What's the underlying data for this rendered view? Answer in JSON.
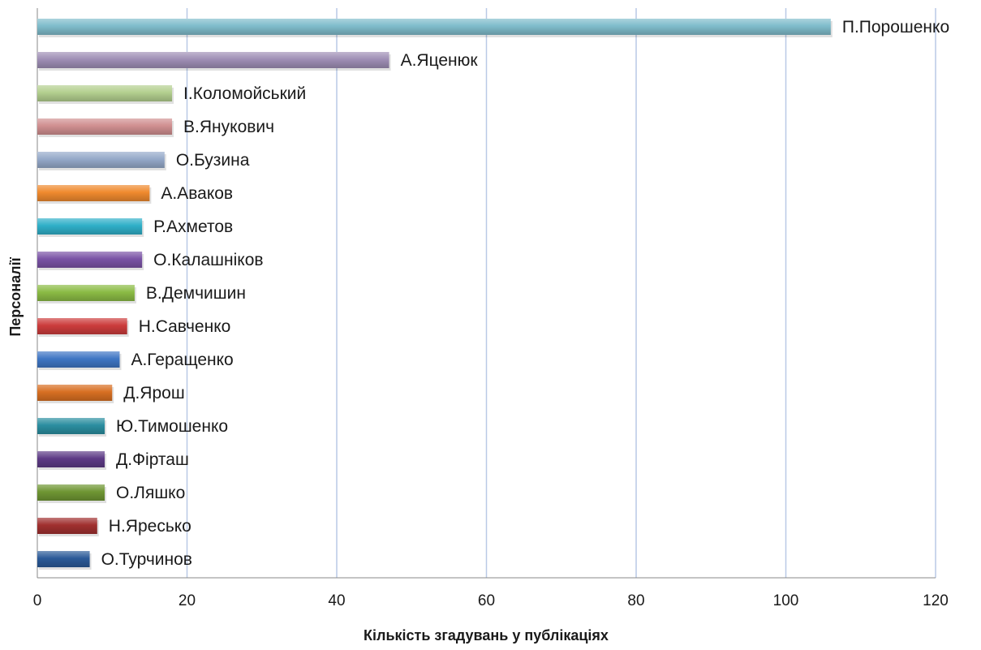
{
  "chart_data": {
    "type": "bar",
    "orientation": "horizontal",
    "title": "",
    "xlabel": "Кількість згадувань у публікаціях",
    "ylabel": "Персоналії",
    "xlim": [
      0,
      120
    ],
    "xticks": [
      0,
      20,
      40,
      60,
      80,
      100,
      120
    ],
    "grid": true,
    "data_labels": "category-names-at-bar-end",
    "categories": [
      "П.Порошенко",
      "А.Яценюк",
      "І.Коломойський",
      "В.Янукович",
      "О.Бузина",
      "А.Аваков",
      "Р.Ахметов",
      "О.Калашніков",
      "В.Демчишин",
      "Н.Савченко",
      "А.Геращенко",
      "Д.Ярош",
      "Ю.Тимошенко",
      "Д.Фірташ",
      "О.Ляшко",
      "Н.Яресько",
      "О.Турчинов"
    ],
    "values": [
      106,
      47,
      18,
      18,
      17,
      15,
      14,
      14,
      13,
      12,
      11,
      10,
      9,
      9,
      9,
      8,
      7
    ],
    "colors": [
      "#7fbccb",
      "#9f8fb5",
      "#b3cf8f",
      "#d08f90",
      "#95a9c9",
      "#f08a2e",
      "#2fafc8",
      "#7a53a5",
      "#8bbb45",
      "#cc3c3c",
      "#3f76c4",
      "#d86f22",
      "#2b8ea0",
      "#5e3b86",
      "#6f9633",
      "#a0302f",
      "#2b5a98"
    ],
    "grid_color": "#b9c9e6"
  }
}
